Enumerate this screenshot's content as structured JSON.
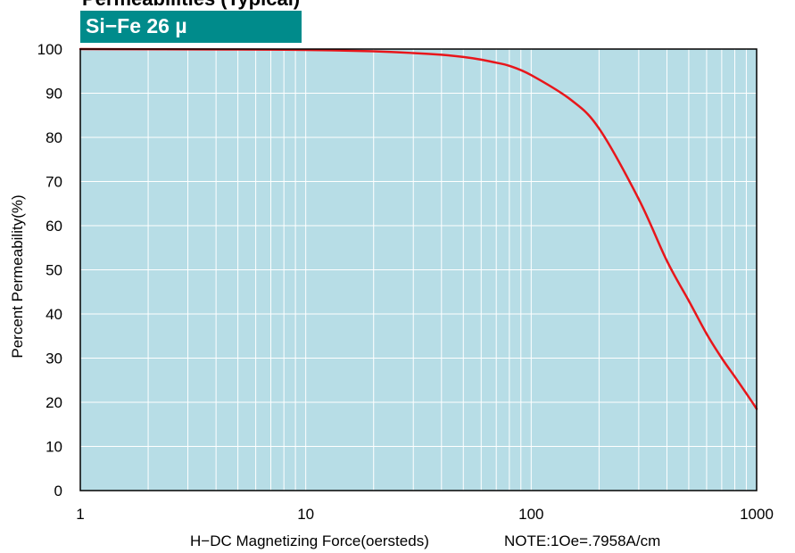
{
  "header": {
    "title": "Permeabilities (Typical)",
    "badge": "Si−Fe 26 µ"
  },
  "colors": {
    "plot_background": "#b7dde6",
    "grid": "#ffffff",
    "curve": "#e8161b",
    "badge": "#008b8b"
  },
  "chart_data": {
    "type": "line",
    "xscale": "log",
    "xlim": [
      1,
      1000
    ],
    "ylim": [
      0,
      100
    ],
    "xticks": [
      1,
      10,
      100,
      1000
    ],
    "yticks": [
      0,
      10,
      20,
      30,
      40,
      50,
      60,
      70,
      80,
      90,
      100
    ],
    "grid": true,
    "ylabel": "Percent Permeability(%)",
    "xlabel": "H−DC Magnetizing Force(oersteds)",
    "note": "NOTE:1Oe=.7958A/cm",
    "series": [
      {
        "x": [
          1,
          5,
          10,
          20,
          30,
          40,
          50,
          60,
          70,
          80,
          100,
          150,
          200,
          300,
          400,
          500,
          600,
          700,
          800,
          900,
          1000
        ],
        "y": [
          100,
          99.9,
          99.8,
          99.5,
          99.1,
          98.7,
          98.2,
          97.6,
          96.9,
          96.2,
          94.1,
          88.5,
          82,
          66,
          52,
          43,
          35.5,
          30,
          25.8,
          22,
          18.5
        ]
      }
    ]
  }
}
